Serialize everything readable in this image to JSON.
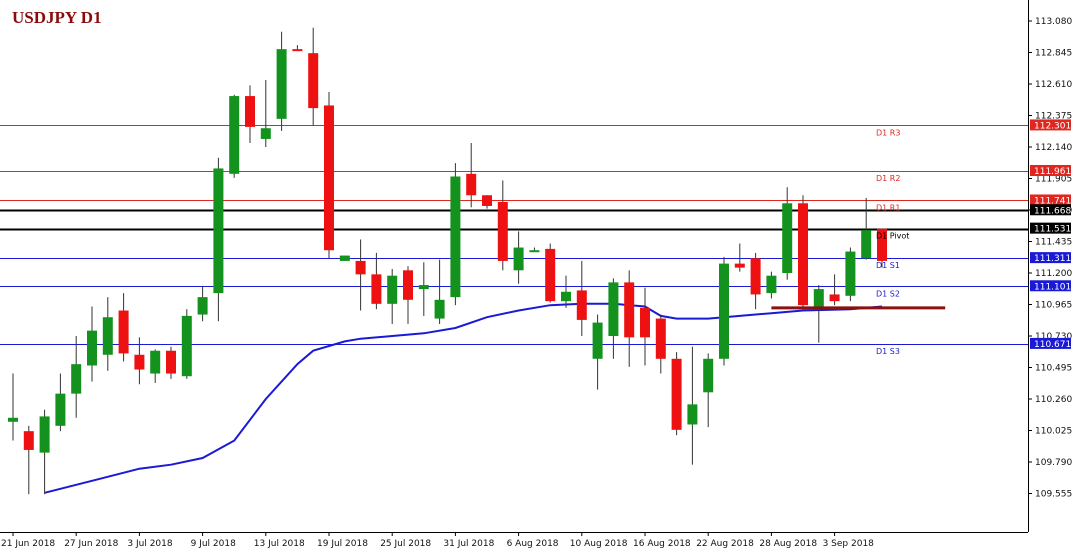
{
  "chart_data": {
    "type": "candlestick",
    "title": "USDJPY D1",
    "timeframe": "D1",
    "ylim": [
      109.44,
      113.2
    ],
    "y_ticks": [
      "113.080",
      "112.845",
      "112.610",
      "112.375",
      "112.140",
      "111.905",
      "111.670",
      "111.435",
      "111.200",
      "110.965",
      "110.730",
      "110.495",
      "110.260",
      "110.025",
      "109.790",
      "109.555"
    ],
    "x_ticks": [
      {
        "label": "21 Jun 2018",
        "index": 0
      },
      {
        "label": "27 Jun 2018",
        "index": 4
      },
      {
        "label": "3 Jul 2018",
        "index": 8
      },
      {
        "label": "9 Jul 2018",
        "index": 12
      },
      {
        "label": "13 Jul 2018",
        "index": 16
      },
      {
        "label": "19 Jul 2018",
        "index": 20
      },
      {
        "label": "25 Jul 2018",
        "index": 24
      },
      {
        "label": "31 Jul 2018",
        "index": 28
      },
      {
        "label": "6 Aug 2018",
        "index": 32
      },
      {
        "label": "10 Aug 2018",
        "index": 36
      },
      {
        "label": "16 Aug 2018",
        "index": 40
      },
      {
        "label": "22 Aug 2018",
        "index": 44
      },
      {
        "label": "28 Aug 2018",
        "index": 48
      },
      {
        "label": "3 Sep 2018",
        "index": 52
      }
    ],
    "candles": [
      {
        "o": 110.09,
        "h": 110.45,
        "l": 109.95,
        "c": 110.12
      },
      {
        "o": 110.02,
        "h": 110.06,
        "l": 109.55,
        "c": 109.88
      },
      {
        "o": 109.86,
        "h": 110.18,
        "l": 109.55,
        "c": 110.13
      },
      {
        "o": 110.06,
        "h": 110.45,
        "l": 110.02,
        "c": 110.3
      },
      {
        "o": 110.3,
        "h": 110.73,
        "l": 110.12,
        "c": 110.52
      },
      {
        "o": 110.51,
        "h": 110.95,
        "l": 110.39,
        "c": 110.77
      },
      {
        "o": 110.59,
        "h": 111.02,
        "l": 110.47,
        "c": 110.87
      },
      {
        "o": 110.92,
        "h": 111.05,
        "l": 110.54,
        "c": 110.6
      },
      {
        "o": 110.59,
        "h": 110.72,
        "l": 110.37,
        "c": 110.48
      },
      {
        "o": 110.45,
        "h": 110.63,
        "l": 110.38,
        "c": 110.62
      },
      {
        "o": 110.62,
        "h": 110.65,
        "l": 110.41,
        "c": 110.45
      },
      {
        "o": 110.43,
        "h": 110.93,
        "l": 110.41,
        "c": 110.88
      },
      {
        "o": 110.89,
        "h": 111.1,
        "l": 110.84,
        "c": 111.02
      },
      {
        "o": 111.05,
        "h": 112.06,
        "l": 110.84,
        "c": 111.98
      },
      {
        "o": 111.94,
        "h": 112.53,
        "l": 111.91,
        "c": 112.52
      },
      {
        "o": 112.52,
        "h": 112.6,
        "l": 112.17,
        "c": 112.29
      },
      {
        "o": 112.2,
        "h": 112.64,
        "l": 112.14,
        "c": 112.28
      },
      {
        "o": 112.35,
        "h": 113.0,
        "l": 112.26,
        "c": 112.87
      },
      {
        "o": 112.87,
        "h": 112.9,
        "l": 112.86,
        "c": 112.86
      },
      {
        "o": 112.84,
        "h": 113.03,
        "l": 112.3,
        "c": 112.43
      },
      {
        "o": 112.45,
        "h": 112.55,
        "l": 111.31,
        "c": 111.37
      },
      {
        "o": 111.29,
        "h": 111.33,
        "l": 111.29,
        "c": 111.33
      },
      {
        "o": 111.29,
        "h": 111.45,
        "l": 110.92,
        "c": 111.19
      },
      {
        "o": 111.19,
        "h": 111.35,
        "l": 110.93,
        "c": 110.97
      },
      {
        "o": 110.97,
        "h": 111.23,
        "l": 110.82,
        "c": 111.18
      },
      {
        "o": 111.22,
        "h": 111.25,
        "l": 110.82,
        "c": 111.0
      },
      {
        "o": 111.08,
        "h": 111.28,
        "l": 110.88,
        "c": 111.11
      },
      {
        "o": 110.86,
        "h": 111.3,
        "l": 110.82,
        "c": 111.0
      },
      {
        "o": 111.02,
        "h": 112.02,
        "l": 110.96,
        "c": 111.92
      },
      {
        "o": 111.94,
        "h": 112.17,
        "l": 111.69,
        "c": 111.78
      },
      {
        "o": 111.78,
        "h": 111.78,
        "l": 111.68,
        "c": 111.7
      },
      {
        "o": 111.73,
        "h": 111.89,
        "l": 111.22,
        "c": 111.29
      },
      {
        "o": 111.22,
        "h": 111.51,
        "l": 111.12,
        "c": 111.39
      },
      {
        "o": 111.37,
        "h": 111.39,
        "l": 111.36,
        "c": 111.37
      },
      {
        "o": 111.38,
        "h": 111.42,
        "l": 110.98,
        "c": 110.99
      },
      {
        "o": 110.99,
        "h": 111.18,
        "l": 110.94,
        "c": 111.06
      },
      {
        "o": 111.07,
        "h": 111.29,
        "l": 110.73,
        "c": 110.85
      },
      {
        "o": 110.56,
        "h": 110.89,
        "l": 110.33,
        "c": 110.83
      },
      {
        "o": 110.73,
        "h": 111.16,
        "l": 110.56,
        "c": 111.13
      },
      {
        "o": 111.13,
        "h": 111.22,
        "l": 110.5,
        "c": 110.72
      },
      {
        "o": 110.94,
        "h": 111.09,
        "l": 110.51,
        "c": 110.72
      },
      {
        "o": 110.86,
        "h": 110.89,
        "l": 110.45,
        "c": 110.56
      },
      {
        "o": 110.56,
        "h": 110.61,
        "l": 109.99,
        "c": 110.03
      },
      {
        "o": 110.07,
        "h": 110.65,
        "l": 109.77,
        "c": 110.22
      },
      {
        "o": 110.31,
        "h": 110.6,
        "l": 110.05,
        "c": 110.56
      },
      {
        "o": 110.56,
        "h": 111.32,
        "l": 110.51,
        "c": 111.27
      },
      {
        "o": 111.27,
        "h": 111.42,
        "l": 111.21,
        "c": 111.24
      },
      {
        "o": 111.31,
        "h": 111.35,
        "l": 110.93,
        "c": 111.04
      },
      {
        "o": 111.05,
        "h": 111.21,
        "l": 111.01,
        "c": 111.18
      },
      {
        "o": 111.2,
        "h": 111.84,
        "l": 111.15,
        "c": 111.72
      },
      {
        "o": 111.72,
        "h": 111.78,
        "l": 110.94,
        "c": 110.96
      },
      {
        "o": 110.94,
        "h": 111.11,
        "l": 110.68,
        "c": 111.08
      },
      {
        "o": 111.04,
        "h": 111.19,
        "l": 110.96,
        "c": 110.99
      },
      {
        "o": 111.03,
        "h": 111.39,
        "l": 110.99,
        "c": 111.36
      },
      {
        "o": 111.31,
        "h": 111.76,
        "l": 111.3,
        "c": 111.52
      },
      {
        "o": 111.53,
        "h": 111.53,
        "l": 111.24,
        "c": 111.29
      }
    ],
    "moving_average": {
      "color": "#1a1ad6",
      "points": [
        [
          2,
          109.56
        ],
        [
          5,
          109.65
        ],
        [
          8,
          109.74
        ],
        [
          10,
          109.77
        ],
        [
          12,
          109.82
        ],
        [
          14,
          109.95
        ],
        [
          16,
          110.26
        ],
        [
          18,
          110.52
        ],
        [
          19,
          110.62
        ],
        [
          21,
          110.69
        ],
        [
          22,
          110.71
        ],
        [
          24,
          110.73
        ],
        [
          26,
          110.75
        ],
        [
          28,
          110.79
        ],
        [
          30,
          110.87
        ],
        [
          32,
          110.92
        ],
        [
          34,
          110.96
        ],
        [
          36,
          110.97
        ],
        [
          38,
          110.97
        ],
        [
          40,
          110.95
        ],
        [
          41,
          110.88
        ],
        [
          42,
          110.86
        ],
        [
          44,
          110.86
        ],
        [
          46,
          110.88
        ],
        [
          48,
          110.9
        ],
        [
          50,
          110.92
        ],
        [
          53,
          110.93
        ],
        [
          55,
          110.95
        ]
      ]
    },
    "levels": [
      {
        "name": "D1 R3",
        "value": 112.301,
        "label": "112.301",
        "color": "#e0271f",
        "kind": "red"
      },
      {
        "name": "D1 R2",
        "value": 111.961,
        "label": "111.961",
        "color": "#e0271f",
        "kind": "red"
      },
      {
        "name": "D1 R1",
        "value": 111.741,
        "label": "111.741",
        "color": "#e0271f",
        "kind": "red"
      },
      {
        "name": "",
        "value": 111.668,
        "label": "111.668",
        "color": "#000000",
        "kind": "black"
      },
      {
        "name": "D1 Pivot",
        "value": 111.531,
        "label": "111.531",
        "color": "#000000",
        "kind": "black"
      },
      {
        "name": "D1 S1",
        "value": 111.311,
        "label": "111.311",
        "color": "#1a1ad6",
        "kind": "blue"
      },
      {
        "name": "D1 S2",
        "value": 111.101,
        "label": "111.101",
        "color": "#1a1ad6",
        "kind": "blue"
      },
      {
        "name": "D1 S3",
        "value": 110.671,
        "label": "110.671",
        "color": "#1a1ad6",
        "kind": "blue"
      }
    ],
    "support_line": {
      "value": 110.94,
      "from_index": 48,
      "to_index": 59,
      "color": "#8b1010"
    },
    "colors": {
      "up": "#14921e",
      "down": "#ee1111",
      "wick": "#333333",
      "axis": "#000000"
    }
  }
}
